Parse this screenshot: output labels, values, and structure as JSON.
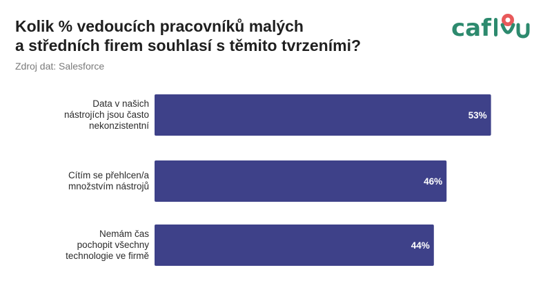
{
  "title_lines": [
    "Kolik % vedoucích pracovníků malých",
    "a středních firem souhlasí s těmito tvrzeními?"
  ],
  "subtitle": "Zdroj dat: Salesforce",
  "logo": {
    "text": "caflou",
    "colors": {
      "text": "#2d8a6e",
      "pin": "#e8595a"
    }
  },
  "chart_data": {
    "type": "bar",
    "orientation": "horizontal",
    "categories": [
      "Data v našich nástrojích jsou často nekonzistentní",
      "Cítím se přehlcen/a množstvím nástrojů",
      "Nemám čas pochopit všechny technologie ve firmě"
    ],
    "category_lines": [
      [
        "Data v našich",
        "nástrojích jsou často",
        "nekonzistentní"
      ],
      [
        "Cítím se přehlcen/a",
        "množstvím nástrojů"
      ],
      [
        "Nemám čas",
        "pochopit všechny",
        "technologie ve firmě"
      ]
    ],
    "values": [
      53,
      46,
      44
    ],
    "value_labels": [
      "53%",
      "46%",
      "44%"
    ],
    "unit": "%",
    "xlim": [
      0,
      100
    ],
    "bar_color": "#3e4189",
    "grid": false
  }
}
